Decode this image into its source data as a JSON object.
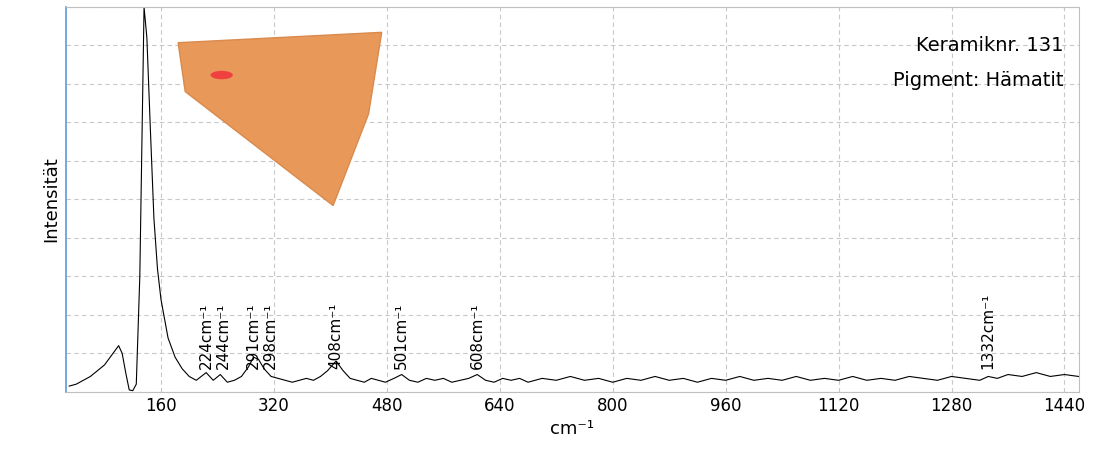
{
  "chart_data": {
    "type": "line",
    "x": [
      30,
      40,
      50,
      60,
      70,
      80,
      90,
      100,
      105,
      110,
      115,
      120,
      125,
      130,
      136,
      140,
      145,
      150,
      155,
      160,
      170,
      180,
      190,
      200,
      210,
      224,
      234,
      244,
      254,
      264,
      274,
      284,
      291,
      298,
      306,
      316,
      326,
      336,
      346,
      356,
      366,
      376,
      386,
      396,
      408,
      418,
      428,
      438,
      448,
      458,
      468,
      478,
      490,
      501,
      512,
      524,
      536,
      548,
      560,
      572,
      584,
      596,
      608,
      620,
      632,
      644,
      656,
      668,
      680,
      700,
      720,
      740,
      760,
      780,
      800,
      820,
      840,
      860,
      880,
      900,
      920,
      940,
      960,
      980,
      1000,
      1020,
      1040,
      1060,
      1080,
      1100,
      1120,
      1140,
      1160,
      1180,
      1200,
      1220,
      1240,
      1260,
      1280,
      1300,
      1320,
      1332,
      1345,
      1360,
      1380,
      1400,
      1420,
      1440,
      1460
    ],
    "values": [
      1.5,
      2,
      3,
      4,
      5.5,
      7,
      9.5,
      12,
      10,
      5,
      0.5,
      0.3,
      2,
      30,
      100,
      92,
      68,
      45,
      32,
      24,
      14,
      9,
      6,
      4,
      3,
      5,
      3,
      4.5,
      2.5,
      3,
      4,
      6.5,
      9,
      8.5,
      6,
      4,
      3.5,
      3,
      2.5,
      3,
      3.5,
      3,
      4,
      5.5,
      8,
      5.5,
      3.5,
      3,
      2.5,
      3.5,
      3,
      2.5,
      3.5,
      4.5,
      3,
      2.5,
      3.5,
      3,
      3.5,
      2.5,
      3,
      3.5,
      4.5,
      3,
      2.5,
      3.5,
      3,
      3.5,
      2.5,
      3.5,
      3,
      4,
      3,
      3.5,
      2.5,
      3.5,
      3,
      4,
      3,
      3.5,
      2.5,
      3.5,
      3,
      4,
      3,
      3.5,
      3,
      4,
      3,
      3.5,
      3,
      4,
      3,
      3.5,
      3,
      4,
      3.5,
      3,
      4,
      3.5,
      3,
      4,
      3.5,
      4.5,
      4,
      5,
      4,
      4.5,
      4
    ],
    "color": "#000000",
    "xlim": [
      25,
      1460
    ],
    "xticks": [
      160,
      320,
      480,
      640,
      800,
      960,
      1120,
      1280,
      1440
    ],
    "ylim": [
      0,
      100
    ],
    "yticks": [
      0,
      10,
      20,
      30,
      40,
      50,
      60,
      70,
      80,
      90,
      100
    ],
    "grid": true,
    "tick_labels": "x",
    "xlabel": "cm⁻¹",
    "ylabel": "Intensität",
    "annotations": [
      {
        "x": 224,
        "text": "224cm⁻¹"
      },
      {
        "x": 244,
        "text": "244cm⁻¹"
      },
      {
        "x": 291,
        "text": "291cm⁻¹"
      },
      {
        "x": 298,
        "text": "298cm⁻¹"
      },
      {
        "x": 408,
        "text": "408cm⁻¹"
      },
      {
        "x": 501,
        "text": "501cm⁻¹"
      },
      {
        "x": 608,
        "text": "608cm⁻¹"
      },
      {
        "x": 1332,
        "text": "1332cm⁻¹"
      }
    ],
    "texts": [
      "Keramiknr. 131",
      "Pigment: Hämatit"
    ]
  }
}
